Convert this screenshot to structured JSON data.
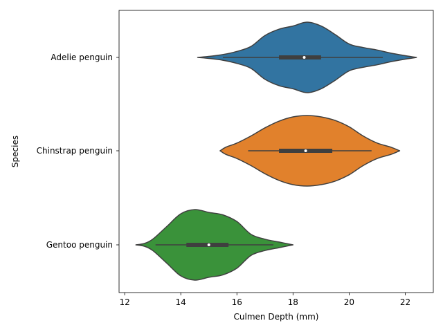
{
  "chart_data": {
    "type": "violin",
    "orientation": "horizontal",
    "title": "",
    "xlabel": "Culmen Depth (mm)",
    "ylabel": "Species",
    "xlim": [
      11.8,
      23.0
    ],
    "xticks": [
      12,
      14,
      16,
      18,
      20,
      22
    ],
    "xtick_labels": [
      "12",
      "14",
      "16",
      "18",
      "20",
      "22"
    ],
    "categories": [
      "Adelie penguin",
      "Chinstrap penguin",
      "Gentoo penguin"
    ],
    "grid": false,
    "legend": "none",
    "colors": [
      "#3274a1",
      "#e1812c",
      "#3a923a"
    ],
    "edge_color": "#3f3f3f",
    "series": [
      {
        "name": "Adelie penguin",
        "density_x": [
          14.6,
          15.0,
          15.5,
          16.0,
          16.5,
          17.0,
          17.5,
          18.0,
          18.5,
          19.0,
          19.5,
          20.0,
          20.5,
          21.0,
          21.5,
          22.0,
          22.4
        ],
        "density_y": [
          0.0,
          0.03,
          0.08,
          0.17,
          0.31,
          0.62,
          0.8,
          0.89,
          1.0,
          0.89,
          0.65,
          0.38,
          0.28,
          0.21,
          0.12,
          0.05,
          0.0
        ],
        "min": 15.5,
        "q1": 17.5,
        "median": 18.4,
        "q3": 19.0,
        "max": 21.2
      },
      {
        "name": "Chinstrap penguin",
        "density_x": [
          15.4,
          15.6,
          16.0,
          16.5,
          17.0,
          17.5,
          18.0,
          18.5,
          19.0,
          19.5,
          20.0,
          20.5,
          21.0,
          21.5,
          21.8
        ],
        "density_y": [
          0.0,
          0.1,
          0.22,
          0.42,
          0.65,
          0.84,
          0.96,
          1.0,
          0.96,
          0.86,
          0.68,
          0.42,
          0.22,
          0.1,
          0.0
        ],
        "min": 16.4,
        "q1": 17.5,
        "median": 18.45,
        "q3": 19.4,
        "max": 20.8
      },
      {
        "name": "Gentoo penguin",
        "density_x": [
          12.4,
          12.7,
          13.0,
          13.5,
          14.0,
          14.5,
          15.0,
          15.5,
          16.0,
          16.5,
          17.0,
          17.5,
          18.0
        ],
        "density_y": [
          0.0,
          0.04,
          0.16,
          0.52,
          0.88,
          1.0,
          0.92,
          0.85,
          0.66,
          0.3,
          0.16,
          0.08,
          0.0
        ],
        "min": 13.1,
        "q1": 14.2,
        "median": 15.0,
        "q3": 15.7,
        "max": 17.3
      }
    ]
  }
}
